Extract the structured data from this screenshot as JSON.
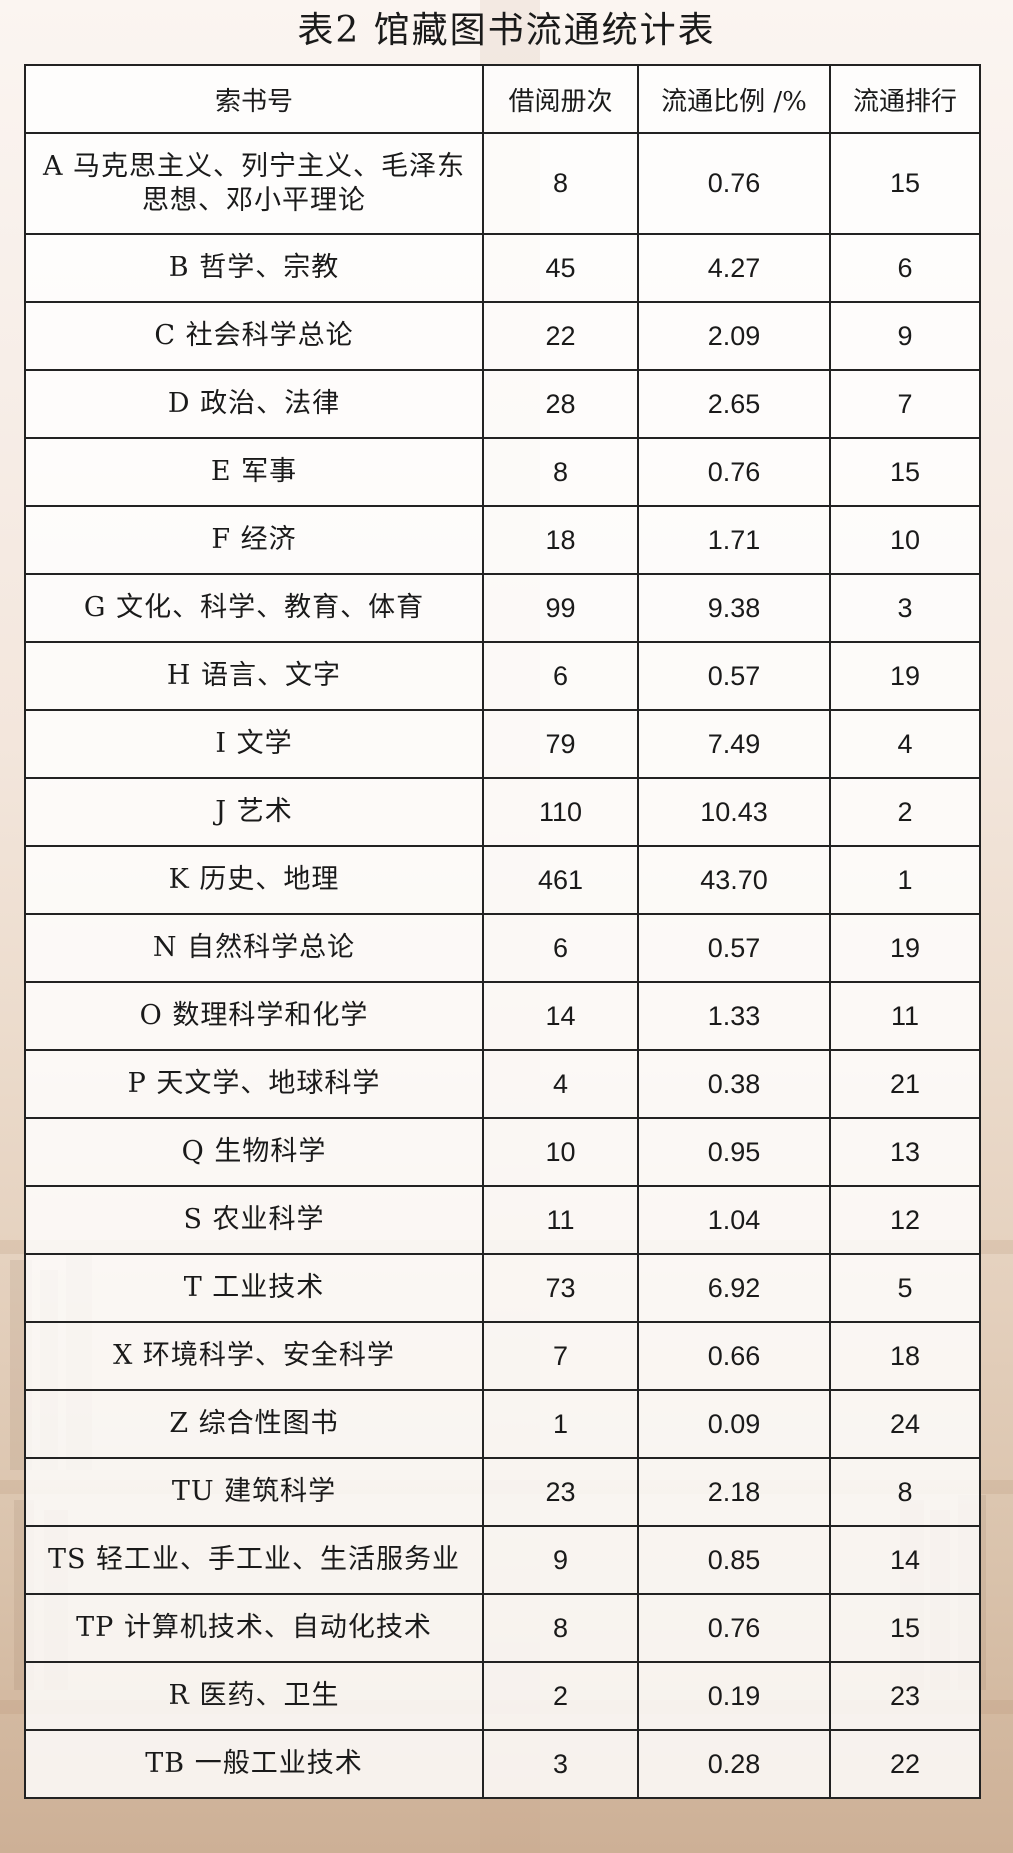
{
  "title": "表2 馆藏图书流通统计表",
  "table": {
    "headers": [
      "索书号",
      "借阅册次",
      "流通比例 /%",
      "流通排行"
    ],
    "rows": [
      {
        "category": "A 马克思主义、列宁主义、毛泽东思想、邓小平理论",
        "borrows": "8",
        "ratio": "0.76",
        "rank": "15"
      },
      {
        "category": "B 哲学、宗教",
        "borrows": "45",
        "ratio": "4.27",
        "rank": "6"
      },
      {
        "category": "C 社会科学总论",
        "borrows": "22",
        "ratio": "2.09",
        "rank": "9"
      },
      {
        "category": "D 政治、法律",
        "borrows": "28",
        "ratio": "2.65",
        "rank": "7"
      },
      {
        "category": "E 军事",
        "borrows": "8",
        "ratio": "0.76",
        "rank": "15"
      },
      {
        "category": "F 经济",
        "borrows": "18",
        "ratio": "1.71",
        "rank": "10"
      },
      {
        "category": "G 文化、科学、教育、体育",
        "borrows": "99",
        "ratio": "9.38",
        "rank": "3"
      },
      {
        "category": "H 语言、文字",
        "borrows": "6",
        "ratio": "0.57",
        "rank": "19"
      },
      {
        "category": "I 文学",
        "borrows": "79",
        "ratio": "7.49",
        "rank": "4"
      },
      {
        "category": "J 艺术",
        "borrows": "110",
        "ratio": "10.43",
        "rank": "2"
      },
      {
        "category": "K 历史、地理",
        "borrows": "461",
        "ratio": "43.70",
        "rank": "1"
      },
      {
        "category": "N 自然科学总论",
        "borrows": "6",
        "ratio": "0.57",
        "rank": "19"
      },
      {
        "category": "O 数理科学和化学",
        "borrows": "14",
        "ratio": "1.33",
        "rank": "11"
      },
      {
        "category": "P 天文学、地球科学",
        "borrows": "4",
        "ratio": "0.38",
        "rank": "21"
      },
      {
        "category": "Q 生物科学",
        "borrows": "10",
        "ratio": "0.95",
        "rank": "13"
      },
      {
        "category": "S 农业科学",
        "borrows": "11",
        "ratio": "1.04",
        "rank": "12"
      },
      {
        "category": "T 工业技术",
        "borrows": "73",
        "ratio": "6.92",
        "rank": "5"
      },
      {
        "category": "X 环境科学、安全科学",
        "borrows": "7",
        "ratio": "0.66",
        "rank": "18"
      },
      {
        "category": "Z 综合性图书",
        "borrows": "1",
        "ratio": "0.09",
        "rank": "24"
      },
      {
        "category": "TU 建筑科学",
        "borrows": "23",
        "ratio": "2.18",
        "rank": "8"
      },
      {
        "category": "TS 轻工业、手工业、生活服务业",
        "borrows": "9",
        "ratio": "0.85",
        "rank": "14"
      },
      {
        "category": "TP 计算机技术、自动化技术",
        "borrows": "8",
        "ratio": "0.76",
        "rank": "15"
      },
      {
        "category": "R 医药、卫生",
        "borrows": "2",
        "ratio": "0.19",
        "rank": "23"
      },
      {
        "category": "TB 一般工业技术",
        "borrows": "3",
        "ratio": "0.28",
        "rank": "22"
      }
    ]
  },
  "colors": {
    "border": "#222222",
    "text": "#1a1a1a",
    "background_top": "#fbf5f1",
    "background_bottom": "#cdb096"
  }
}
